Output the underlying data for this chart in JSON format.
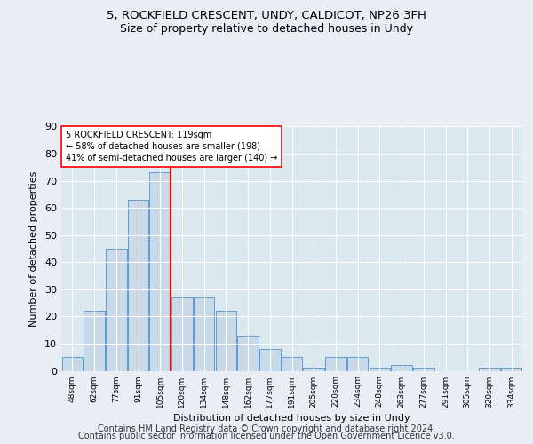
{
  "title1": "5, ROCKFIELD CRESCENT, UNDY, CALDICOT, NP26 3FH",
  "title2": "Size of property relative to detached houses in Undy",
  "xlabel": "Distribution of detached houses by size in Undy",
  "ylabel": "Number of detached properties",
  "categories": [
    "48sqm",
    "62sqm",
    "77sqm",
    "91sqm",
    "105sqm",
    "120sqm",
    "134sqm",
    "148sqm",
    "162sqm",
    "177sqm",
    "191sqm",
    "205sqm",
    "220sqm",
    "234sqm",
    "248sqm",
    "263sqm",
    "277sqm",
    "291sqm",
    "305sqm",
    "320sqm",
    "334sqm"
  ],
  "values": [
    5,
    22,
    45,
    63,
    73,
    27,
    27,
    22,
    13,
    8,
    5,
    1,
    5,
    5,
    1,
    2,
    1,
    0,
    0,
    1,
    1
  ],
  "bar_color": "#c9d9e8",
  "bar_edge_color": "#5b9bd5",
  "red_line_after_index": 4,
  "annotation_text": "5 ROCKFIELD CRESCENT: 119sqm\n← 58% of detached houses are smaller (198)\n41% of semi-detached houses are larger (140) →",
  "annotation_box_color": "white",
  "annotation_box_edge_color": "red",
  "footer_line1": "Contains HM Land Registry data © Crown copyright and database right 2024.",
  "footer_line2": "Contains public sector information licensed under the Open Government Licence v3.0.",
  "ylim": [
    0,
    90
  ],
  "yticks": [
    0,
    10,
    20,
    30,
    40,
    50,
    60,
    70,
    80,
    90
  ],
  "bg_color": "#e8eef4",
  "plot_bg_color": "#dce8f0",
  "grid_color": "white",
  "title1_fontsize": 9.5,
  "title2_fontsize": 9,
  "footer_fontsize": 7,
  "ylabel_fontsize": 8,
  "xlabel_fontsize": 8
}
